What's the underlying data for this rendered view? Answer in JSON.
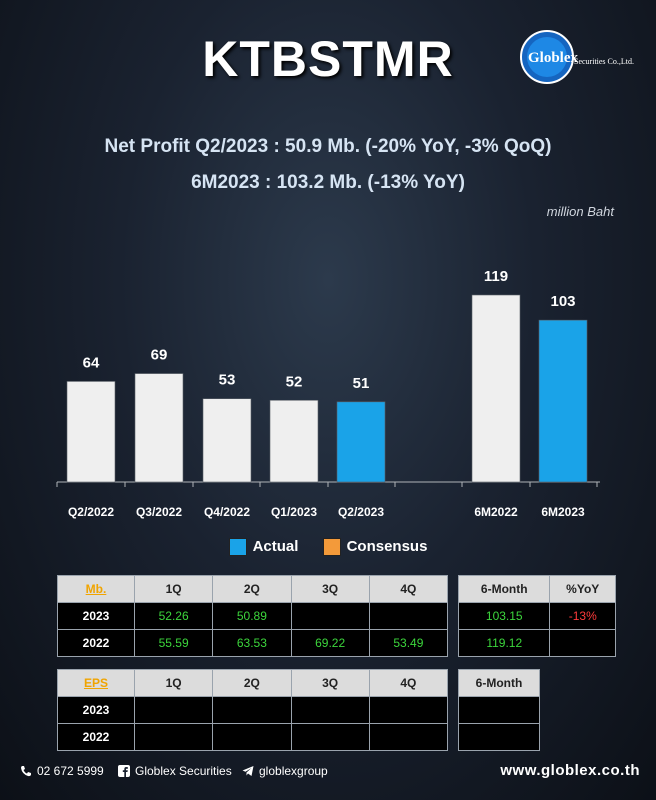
{
  "ticker": "KTBSTMR",
  "logo": {
    "name": "Globlex",
    "subtitle": "Securities Co.,Ltd."
  },
  "headline1": "Net Profit  Q2/2023 : 50.9 Mb. (-20% YoY, -3% QoQ)",
  "headline2": "6M2023 : 103.2 Mb. (-13% YoY)",
  "unit": "million Baht",
  "chart_data": {
    "type": "bar",
    "categories": [
      "Q2/2022",
      "Q3/2022",
      "Q4/2022",
      "Q1/2023",
      "Q2/2023",
      "6M2022",
      "6M2023"
    ],
    "values": [
      64,
      69,
      53,
      52,
      51,
      119,
      103
    ],
    "series_type": [
      "past",
      "past",
      "past",
      "past",
      "actual",
      "past",
      "actual"
    ],
    "ylim": [
      0,
      140
    ],
    "grid": false,
    "colors": {
      "actual": "#1aa3e8",
      "consensus": "#f39a3a",
      "past": "#efefef"
    }
  },
  "legend": {
    "actual": "Actual",
    "consensus": "Consensus"
  },
  "profit_table": {
    "corner": "Mb.",
    "headers": [
      "1Q",
      "2Q",
      "3Q",
      "4Q"
    ],
    "rows": [
      {
        "year": "2023",
        "values": [
          "52.26",
          "50.89",
          "",
          ""
        ]
      },
      {
        "year": "2022",
        "values": [
          "55.59",
          "63.53",
          "69.22",
          "53.49"
        ]
      }
    ]
  },
  "half_table": {
    "headers": [
      "6-Month",
      "%YoY"
    ],
    "rows": [
      {
        "values": [
          "103.15",
          "-13%"
        ]
      },
      {
        "values": [
          "119.12",
          ""
        ]
      }
    ]
  },
  "eps_table": {
    "corner": "EPS",
    "headers": [
      "1Q",
      "2Q",
      "3Q",
      "4Q"
    ],
    "rows": [
      {
        "year": "2023",
        "values": [
          "",
          "",
          "",
          ""
        ]
      },
      {
        "year": "2022",
        "values": [
          "",
          "",
          "",
          ""
        ]
      }
    ]
  },
  "eps_half_table": {
    "headers": [
      "6-Month"
    ]
  },
  "footer": {
    "phone": "02 672 5999",
    "facebook": "Globlex Securities",
    "telegram": "globlexgroup",
    "website": "www.globlex.co.th"
  }
}
